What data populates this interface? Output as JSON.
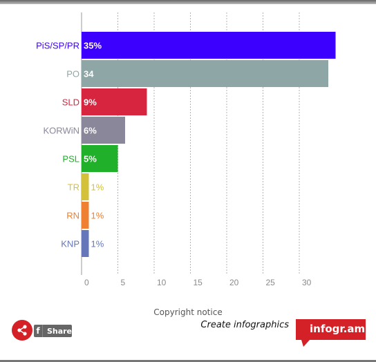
{
  "chart_data": {
    "type": "bar",
    "orientation": "horizontal",
    "categories": [
      "PiS/SP/PR",
      "PO",
      "SLD",
      "KORWiN",
      "PSL",
      "TR",
      "RN",
      "KNP"
    ],
    "values": [
      35,
      34,
      9,
      6,
      5,
      1,
      1,
      1
    ],
    "value_labels": [
      "35%",
      "34",
      "9%",
      "6%",
      "5%",
      "1%",
      "1%",
      "1%"
    ],
    "colors": [
      "#3c00ff",
      "#8fa6a6",
      "#d7253f",
      "#8a879b",
      "#20b02a",
      "#d4c13a",
      "#ef7f31",
      "#6577ba"
    ],
    "xticks": [
      0,
      5,
      10,
      15,
      20,
      25,
      30
    ],
    "xlim": [
      0,
      35
    ],
    "grid": true
  },
  "footer": {
    "copyright": "Copyright notice",
    "share_label": "Share",
    "fb_letter": "f",
    "create_text": "Create infographics",
    "brand": "infogr.am",
    "brand_color": "#d42027"
  }
}
